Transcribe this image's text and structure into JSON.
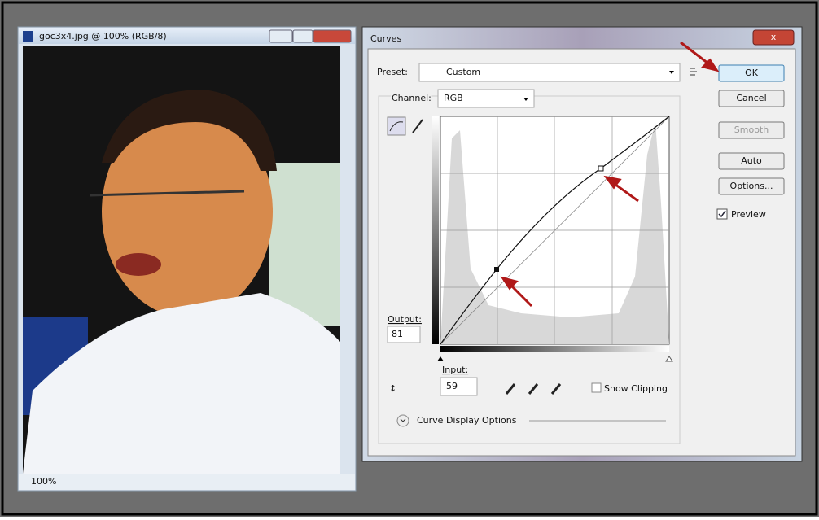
{
  "image_window": {
    "title": "goc3x4.jpg @ 100% (RGB/8)",
    "zoom": "100%"
  },
  "curves_dialog": {
    "title": "Curves",
    "preset_label": "Preset:",
    "preset_value": "Custom",
    "buttons": [
      "OK",
      "Cancel",
      "Smooth",
      "Auto",
      "Options..."
    ],
    "preview": "Preview",
    "channel_label": "Channel:",
    "channel_value": "RGB",
    "output_label": "Output:",
    "output_value": "81",
    "input_label": "Input:",
    "input_value": "59",
    "show_clipping": "Show Clipping",
    "display_options": "Curve Display Options"
  }
}
